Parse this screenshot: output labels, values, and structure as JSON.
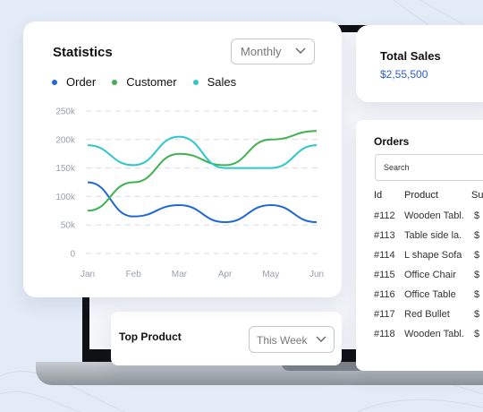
{
  "statistics": {
    "title": "Statistics",
    "period": "Monthly"
  },
  "chart_data": {
    "type": "line",
    "categories": [
      "Jan",
      "Feb",
      "Mar",
      "Apr",
      "May",
      "Jun"
    ],
    "y_ticks": [
      "250k",
      "200k",
      "150k",
      "100k",
      "50k",
      "0"
    ],
    "ylim": [
      0,
      250000
    ],
    "grid": true,
    "legend_placement": "top-left",
    "series": [
      {
        "name": "Order",
        "color": "#1f67d6",
        "values": [
          125000,
          65000,
          85000,
          55000,
          85000,
          55000
        ]
      },
      {
        "name": "Customer",
        "color": "#3fb14f",
        "values": [
          75000,
          125000,
          175000,
          155000,
          200000,
          215000
        ]
      },
      {
        "name": "Sales",
        "color": "#2ec7cc",
        "values": [
          190000,
          155000,
          205000,
          150000,
          150000,
          190000
        ]
      }
    ]
  },
  "total_sales": {
    "title": "Total Sales",
    "value": "$2,55,500",
    "value_color": "#2c5bd6"
  },
  "orders": {
    "title": "Orders",
    "search_placeholder": "Search",
    "headers": {
      "id": "Id",
      "product": "Product",
      "status": "Su"
    },
    "rows": [
      {
        "id": "#112",
        "product": "Wooden Tabl.",
        "status": "$"
      },
      {
        "id": "#113",
        "product": "Table side la.",
        "status": "$"
      },
      {
        "id": "#114",
        "product": "L shape Sofa",
        "status": "$"
      },
      {
        "id": "#115",
        "product": "Office Chair",
        "status": "$"
      },
      {
        "id": "#116",
        "product": "Office Table",
        "status": "$"
      },
      {
        "id": "#117",
        "product": "Red Bullet",
        "status": "$"
      },
      {
        "id": "#118",
        "product": "Wooden Tabl.",
        "status": "$"
      }
    ]
  },
  "top_product": {
    "title": "Top Product",
    "period": "This Week"
  },
  "icons": {
    "select_chevron": "chevron-down-icon"
  }
}
